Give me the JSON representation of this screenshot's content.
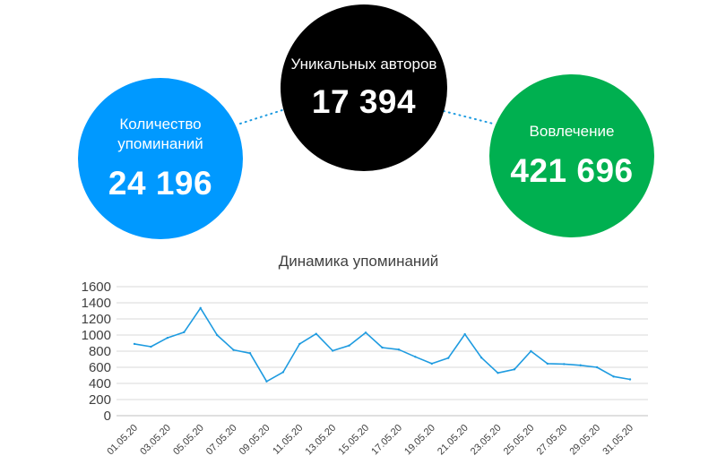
{
  "kpis": {
    "mentions": {
      "label": "Количество упоминаний",
      "value": "24 196",
      "color": "#0099ff"
    },
    "authors": {
      "label": "Уникальных авторов",
      "value": "17 394",
      "color": "#000000"
    },
    "engagement": {
      "label": "Вовлечение",
      "value": "421 696",
      "color": "#00b050"
    }
  },
  "chart_data": {
    "type": "line",
    "title": "Динамика упоминаний",
    "xlabel": "",
    "ylabel": "",
    "ylim": [
      0,
      1600
    ],
    "yticks": [
      0,
      200,
      400,
      600,
      800,
      1000,
      1200,
      1400,
      1600
    ],
    "grid": true,
    "x": [
      "01.05.20",
      "02.05.20",
      "03.05.20",
      "04.05.20",
      "05.05.20",
      "06.05.20",
      "07.05.20",
      "08.05.20",
      "09.05.20",
      "10.05.20",
      "11.05.20",
      "12.05.20",
      "13.05.20",
      "14.05.20",
      "15.05.20",
      "16.05.20",
      "17.05.20",
      "18.05.20",
      "19.05.20",
      "20.05.20",
      "21.05.20",
      "22.05.20",
      "23.05.20",
      "24.05.20",
      "25.05.20",
      "26.05.20",
      "27.05.20",
      "28.05.20",
      "29.05.20",
      "30.05.20",
      "31.05.20"
    ],
    "xtick_labels": [
      "01.05.20",
      "03.05.20",
      "05.05.20",
      "07.05.20",
      "09.05.20",
      "11.05.20",
      "13.05.20",
      "15.05.20",
      "17.05.20",
      "19.05.20",
      "21.05.20",
      "23.05.20",
      "25.05.20",
      "27.05.20",
      "29.05.20",
      "31.05.20"
    ],
    "series": [
      {
        "values": [
          890,
          855,
          965,
          1035,
          1335,
          1000,
          815,
          775,
          425,
          540,
          890,
          1015,
          805,
          870,
          1030,
          845,
          820,
          730,
          645,
          715,
          1010,
          720,
          530,
          575,
          800,
          645,
          640,
          625,
          600,
          485,
          450
        ],
        "color": "#1e9be0"
      }
    ]
  }
}
